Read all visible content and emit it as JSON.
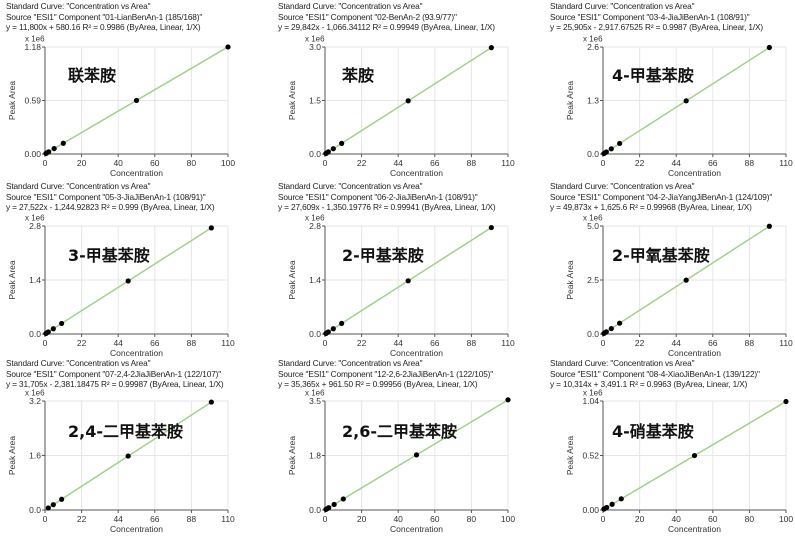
{
  "chart_data": [
    {
      "type": "scatter",
      "title": "Standard Curve: \"Concentration vs Area\"",
      "source": "Source \"ESI1\" Component \"01-LianBenAn-1 (185/168)\"",
      "equation": "y = 11,800x + 580.16    R² = 0.9986  (ByArea, Linear, 1/X)",
      "annotation": "联苯胺",
      "xlabel": "Concentration",
      "ylabel": "Peak Area",
      "yunit": "x 1e6",
      "xlim": [
        0,
        100
      ],
      "xticks": [
        "0",
        "20",
        "40",
        "60",
        "80",
        "100"
      ],
      "ylim": [
        0,
        1180000
      ],
      "yticks": [
        "0.00",
        "0.59",
        "1.18"
      ],
      "x": [
        0.5,
        1,
        2,
        5,
        10,
        50,
        100
      ],
      "y": [
        6480,
        12380,
        24180,
        59580,
        118580,
        590580,
        1180580
      ],
      "fit": {
        "slope": 11800,
        "intercept": 580.16
      },
      "grid": true
    },
    {
      "type": "scatter",
      "title": "Standard Curve: \"Concentration vs Area\"",
      "source": "Source \"ESI1\" Component \"02-BenAn-2 (93.9/77)\"",
      "equation": "y = 29,842x - 1,066.34112    R² = 0.99949  (ByArea, Linear, 1/X)",
      "annotation": "苯胺",
      "xlabel": "Concentration",
      "ylabel": "Peak Area",
      "yunit": "x 1e6",
      "xlim": [
        0,
        110
      ],
      "xticks": [
        "0",
        "22",
        "44",
        "66",
        "88",
        "110"
      ],
      "ylim": [
        0,
        3000000
      ],
      "yticks": [
        "0.0",
        "1.5",
        "3.0"
      ],
      "x": [
        0.5,
        1,
        2,
        5,
        10,
        50,
        100
      ],
      "y": [
        13855,
        28776,
        58618,
        148144,
        297354,
        1491034,
        2983134
      ],
      "fit": {
        "slope": 29842,
        "intercept": -1066.34112
      },
      "grid": true
    },
    {
      "type": "scatter",
      "title": "Standard Curve: \"Concentration vs Area\"",
      "source": "Source \"ESI1\" Component \"03-4-JiaJiBenAn-1 (108/91)\"",
      "equation": "y = 25,905x - 2,917.67525    R² = 0.9987  (ByArea, Linear, 1/X)",
      "annotation": "4-甲基苯胺",
      "xlabel": "Concentration",
      "ylabel": "Peak Area",
      "yunit": "x 1e6",
      "xlim": [
        0,
        110
      ],
      "xticks": [
        "0",
        "22",
        "44",
        "66",
        "88",
        "110"
      ],
      "ylim": [
        0,
        2600000
      ],
      "yticks": [
        "0.0",
        "1.3",
        "2.6"
      ],
      "x": [
        0.5,
        1,
        2,
        5,
        10,
        50,
        100
      ],
      "y": [
        10034,
        22987,
        48892,
        126607,
        256132,
        1292332,
        2587582
      ],
      "fit": {
        "slope": 25905,
        "intercept": -2917.67525
      },
      "grid": true
    },
    {
      "type": "scatter",
      "title": "Standard Curve: \"Concentration vs Area\"",
      "source": "Source \"ESI1\" Component \"05-3-JiaJiBenAn-1 (108/91)\"",
      "equation": "y = 27,522x - 1,244.92823    R² = 0.999  (ByArea, Linear, 1/X)",
      "annotation": "3-甲基苯胺",
      "xlabel": "Concentration",
      "ylabel": "Peak Area",
      "yunit": "x 1e6",
      "xlim": [
        0,
        110
      ],
      "xticks": [
        "0",
        "22",
        "44",
        "66",
        "88",
        "110"
      ],
      "ylim": [
        0,
        2800000
      ],
      "yticks": [
        "0.0",
        "1.4",
        "2.8"
      ],
      "x": [
        0.5,
        1,
        2,
        5,
        10,
        50,
        100
      ],
      "y": [
        12516,
        26277,
        53799,
        136365,
        273975,
        1374855,
        2750955
      ],
      "fit": {
        "slope": 27522,
        "intercept": -1244.92823
      },
      "grid": true
    },
    {
      "type": "scatter",
      "title": "Standard Curve: \"Concentration vs Area\"",
      "source": "Source \"ESI1\" Component \"06-2-JiaJiBenAn-1 (108/91)\"",
      "equation": "y = 27,609x - 1,350.19776    R² = 0.99941  (ByArea, Linear, 1/X)",
      "annotation": "2-甲基苯胺",
      "xlabel": "Concentration",
      "ylabel": "Peak Area",
      "yunit": "x 1e6",
      "xlim": [
        0,
        110
      ],
      "xticks": [
        "0",
        "22",
        "44",
        "66",
        "88",
        "110"
      ],
      "ylim": [
        0,
        2800000
      ],
      "yticks": [
        "0.0",
        "1.4",
        "2.8"
      ],
      "x": [
        0.5,
        1,
        2,
        5,
        10,
        50,
        100
      ],
      "y": [
        12454,
        26259,
        53868,
        136695,
        274740,
        1379100,
        2759550
      ],
      "fit": {
        "slope": 27609,
        "intercept": -1350.19776
      },
      "grid": true
    },
    {
      "type": "scatter",
      "title": "Standard Curve: \"Concentration vs Area\"",
      "source": "Source \"ESI1\" Component \"04-2-JiaYangJiBenAn-1 (124/109)\"",
      "equation": "y = 49,873x + 1,625.6    R² = 0.99968  (ByArea, Linear, 1/X)",
      "annotation": "2-甲氧基苯胺",
      "xlabel": "Concentration",
      "ylabel": "Peak Area",
      "yunit": "x 1e6",
      "xlim": [
        0,
        110
      ],
      "xticks": [
        "0",
        "22",
        "44",
        "66",
        "88",
        "110"
      ],
      "ylim": [
        0,
        5000000
      ],
      "yticks": [
        "0.0",
        "2.5",
        "5.0"
      ],
      "x": [
        0.5,
        1,
        2,
        5,
        10,
        50,
        100
      ],
      "y": [
        26563,
        51499,
        101372,
        250991,
        500356,
        2495276,
        4988926
      ],
      "fit": {
        "slope": 49873,
        "intercept": 1625.6
      },
      "grid": true
    },
    {
      "type": "scatter",
      "title": "Standard Curve: \"Concentration vs Area\"",
      "source": "Source \"ESI1\" Component \"07-2,4-2JiaJiBenAn-1 (122/107)\"",
      "equation": "y = 31,705x - 2,381.18475    R² = 0.99987  (ByArea, Linear, 1/X)",
      "annotation": "2,4-二甲基苯胺",
      "xlabel": "Concentration",
      "ylabel": "Peak Area",
      "yunit": "x 1e6",
      "xlim": [
        0,
        110
      ],
      "xticks": [
        "0",
        "22",
        "44",
        "66",
        "88",
        "110"
      ],
      "ylim": [
        0,
        3200000
      ],
      "yticks": [
        "0.0",
        "1.6",
        "3.2"
      ],
      "x": [
        2,
        5,
        10,
        50,
        100
      ],
      "y": [
        61029,
        156144,
        314669,
        1582869,
        3168119
      ],
      "fit": {
        "slope": 31705,
        "intercept": -2381.18475
      },
      "grid": true
    },
    {
      "type": "scatter",
      "title": "Standard Curve: \"Concentration vs Area\"",
      "source": "Source \"ESI1\" Component \"12-2,6-2JiaJiBenAn-1 (122/105)\"",
      "equation": "y = 35,365x + 961.50    R² = 0.99956  (ByArea, Linear, 1/X)",
      "annotation": "2,6-二甲基苯胺",
      "xlabel": "Concentration",
      "ylabel": "Peak Area",
      "yunit": "x 1e6",
      "xlim": [
        0,
        100
      ],
      "xticks": [
        "0",
        "20",
        "40",
        "60",
        "80",
        "100"
      ],
      "ylim": [
        0,
        3500000
      ],
      "yticks": [
        "0.0",
        "1.8",
        "3.5"
      ],
      "x": [
        0.5,
        1,
        2,
        5,
        10,
        50,
        100
      ],
      "y": [
        18645,
        36327,
        71692,
        177787,
        354612,
        1769212,
        3537462
      ],
      "fit": {
        "slope": 35365,
        "intercept": 961.5
      },
      "grid": true
    },
    {
      "type": "scatter",
      "title": "Standard Curve: \"Concentration vs Area\"",
      "source": "Source \"ESI1\" Component \"08-4-XiaoJiBenAn-1 (139/122)\"",
      "equation": "y = 10,314x + 3,491.1    R² = 0.9963  (ByArea, Linear, 1/X)",
      "annotation": "4-硝基苯胺",
      "xlabel": "Concentration",
      "ylabel": "Peak Area",
      "yunit": "x 1e6",
      "xlim": [
        0,
        100
      ],
      "xticks": [
        "0",
        "20",
        "40",
        "60",
        "80",
        "100"
      ],
      "ylim": [
        0,
        1040000
      ],
      "yticks": [
        "0.00",
        "0.52",
        "1.04"
      ],
      "x": [
        0.5,
        1,
        2,
        5,
        10,
        50,
        100
      ],
      "y": [
        8648,
        13805,
        24119,
        55061,
        106631,
        519191,
        1034891
      ],
      "fit": {
        "slope": 10314,
        "intercept": 3491.1
      },
      "grid": true
    }
  ],
  "colors": {
    "fit_line": "#9fd28a",
    "points": "#000000",
    "grid": "#e6e6e6",
    "axis": "#555555"
  }
}
